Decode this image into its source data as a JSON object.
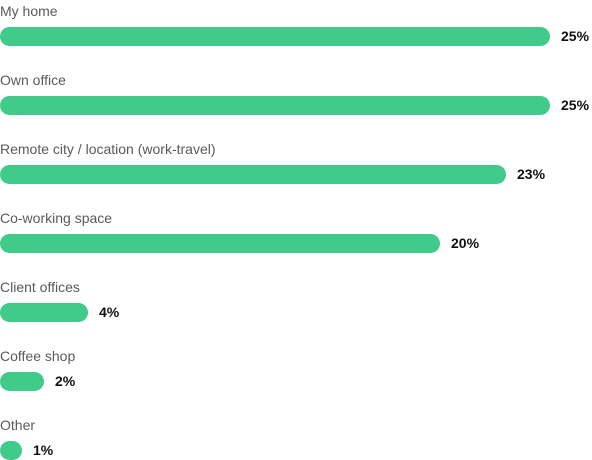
{
  "chart_data": {
    "type": "bar",
    "orientation": "horizontal",
    "categories": [
      "My home",
      "Own office",
      "Remote city / location (work-travel)",
      "Co-working space",
      "Client offices",
      "Coffee shop",
      "Other"
    ],
    "values": [
      25,
      25,
      23,
      20,
      4,
      2,
      1
    ],
    "value_labels": [
      "25%",
      "25%",
      "23%",
      "20%",
      "4%",
      "2%",
      "1%"
    ],
    "unit": "%",
    "title": "",
    "xlabel": "",
    "ylabel": "",
    "grid": false,
    "legend": "none",
    "bar_color": "#40cb8a"
  }
}
